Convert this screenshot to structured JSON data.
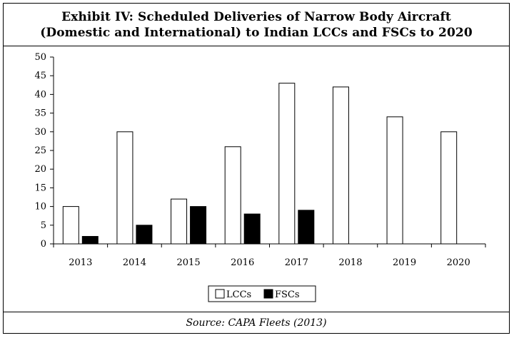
{
  "chart_data": {
    "type": "bar",
    "title_line1": "Exhibit IV: Scheduled Deliveries of Narrow Body Aircraft",
    "title_line2": "(Domestic and International) to Indian LCCs and FSCs to 2020",
    "categories": [
      "2013",
      "2014",
      "2015",
      "2016",
      "2017",
      "2018",
      "2019",
      "2020"
    ],
    "series": [
      {
        "name": "LCCs",
        "fill": "#ffffff",
        "values": [
          10,
          30,
          12,
          26,
          43,
          42,
          34,
          30
        ]
      },
      {
        "name": "FSCs",
        "fill": "#000000",
        "values": [
          2,
          5,
          10,
          8,
          9,
          0,
          0,
          0
        ]
      }
    ],
    "yticks": [
      0,
      5,
      10,
      15,
      20,
      25,
      30,
      35,
      40,
      45,
      50
    ],
    "ylim": [
      0,
      50
    ],
    "grid": false,
    "legend_position": "bottom-center",
    "xlabel": "",
    "ylabel": ""
  },
  "source": "Source: CAPA Fleets (2013)"
}
